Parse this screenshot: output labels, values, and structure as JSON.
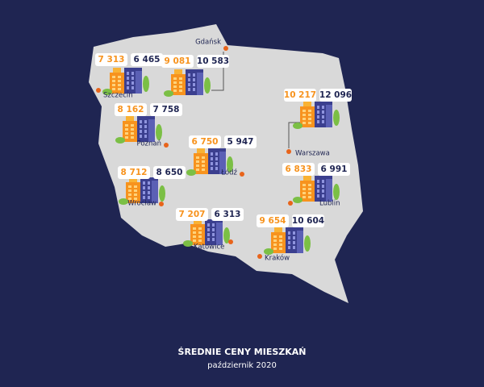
{
  "title": "ŚREDNIE CENY MIESZKAŃ",
  "subtitle": "październik 2020",
  "cities": [
    {
      "name": "Szczecin",
      "price_orange": "7 313",
      "price_dark": "6 465"
    },
    {
      "name": "Gdańsk",
      "price_orange": "9 081",
      "price_dark": "10 583"
    },
    {
      "name": "Warszawa",
      "price_orange": "10 217",
      "price_dark": "12 096"
    },
    {
      "name": "Poznań",
      "price_orange": "8 162",
      "price_dark": "7 758"
    },
    {
      "name": "Łódź",
      "price_orange": "6 750",
      "price_dark": "5 947"
    },
    {
      "name": "Lublin",
      "price_orange": "6 833",
      "price_dark": "6 991"
    },
    {
      "name": "Wrocław",
      "price_orange": "8 712",
      "price_dark": "8 650"
    },
    {
      "name": "Katowice",
      "price_orange": "7 207",
      "price_dark": "6 313"
    },
    {
      "name": "Kraków",
      "price_orange": "9 654",
      "price_dark": "10 604"
    }
  ]
}
